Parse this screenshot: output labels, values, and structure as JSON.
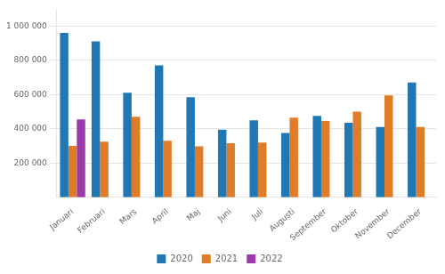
{
  "chart_data": {
    "type": "bar",
    "categories": [
      "Januari",
      "Februari",
      "Mars",
      "April",
      "Maj",
      "Juni",
      "Juli",
      "Augusti",
      "September",
      "Oktober",
      "November",
      "December"
    ],
    "series": [
      {
        "name": "2020",
        "color": "#1F77B4",
        "values": [
          960000,
          910000,
          610000,
          770000,
          585000,
          395000,
          450000,
          375000,
          475000,
          435000,
          410000,
          670000
        ]
      },
      {
        "name": "2021",
        "color": "#E07B28",
        "values": [
          300000,
          325000,
          470000,
          330000,
          297000,
          315000,
          320000,
          465000,
          445000,
          500000,
          595000,
          410000
        ]
      },
      {
        "name": "2022",
        "color": "#9B3BAB",
        "values": [
          455000,
          null,
          null,
          null,
          null,
          null,
          null,
          null,
          null,
          null,
          null,
          null
        ]
      }
    ],
    "ylim": [
      0,
      1100000
    ],
    "yticks": [
      {
        "value": 200000,
        "label": "200 000"
      },
      {
        "value": 400000,
        "label": "400 000"
      },
      {
        "value": 600000,
        "label": "600 000"
      },
      {
        "value": 800000,
        "label": "800 000"
      },
      {
        "value": 1000000,
        "label": "1 000 000"
      }
    ],
    "grid": true,
    "legend": "bottom"
  }
}
